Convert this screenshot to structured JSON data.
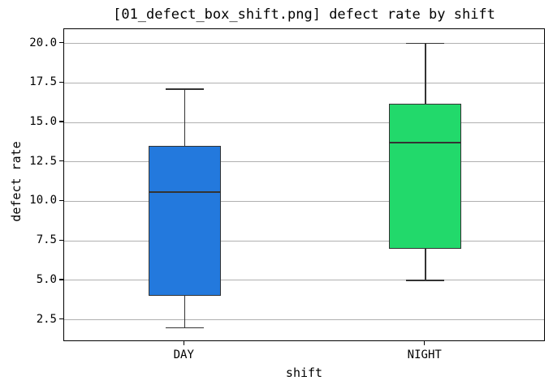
{
  "figure": {
    "background": "#ffffff",
    "frame_color": "#000000"
  },
  "chart_data": {
    "type": "box",
    "title": "[01_defect_box_shift.png] defect rate by shift",
    "xlabel": "shift",
    "ylabel": "defect rate",
    "categories": [
      "DAY",
      "NIGHT"
    ],
    "positions": [
      1,
      2
    ],
    "xlim": [
      0.5,
      2.5
    ],
    "ylim": [
      1.1,
      20.9
    ],
    "yticks": [
      {
        "value": 2.5,
        "label": "2.5"
      },
      {
        "value": 5.0,
        "label": "5.0"
      },
      {
        "value": 7.5,
        "label": "7.5"
      },
      {
        "value": 10.0,
        "label": "10.0"
      },
      {
        "value": 12.5,
        "label": "12.5"
      },
      {
        "value": 15.0,
        "label": "15.0"
      },
      {
        "value": 17.5,
        "label": "17.5"
      },
      {
        "value": 20.0,
        "label": "20.0"
      }
    ],
    "grid": true,
    "grid_color": "#b0b0b0",
    "edge_color": "#333333",
    "box_width": 0.3,
    "cap_width": 0.16,
    "series": [
      {
        "name": "DAY",
        "whisker_low": 2.0,
        "q1": 4.0,
        "median": 10.6,
        "q3": 13.5,
        "whisker_high": 17.1,
        "fill_color": "#2379dd"
      },
      {
        "name": "NIGHT",
        "whisker_low": 5.0,
        "q1": 7.0,
        "median": 13.7,
        "q3": 16.2,
        "whisker_high": 20.0,
        "fill_color": "#22d96b"
      }
    ]
  }
}
